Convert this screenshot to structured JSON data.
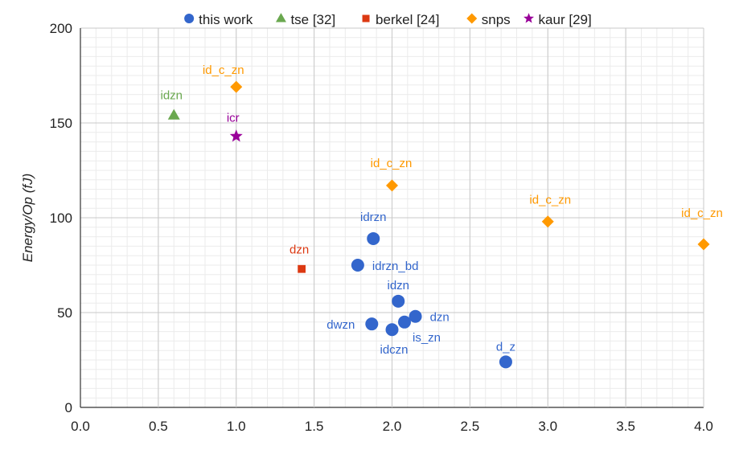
{
  "chart_data": {
    "type": "scatter",
    "title": "",
    "xlabel": "",
    "ylabel": "Energy/Op (fJ)",
    "xlim": [
      0,
      4
    ],
    "ylim": [
      0,
      200
    ],
    "xticks": [
      "0.0",
      "0.5",
      "1.0",
      "1.5",
      "2.0",
      "2.5",
      "3.0",
      "3.5",
      "4.0"
    ],
    "yticks": [
      "0",
      "50",
      "100",
      "150",
      "200"
    ],
    "grid": true,
    "legend": "top",
    "series": [
      {
        "name": "this work",
        "marker": "circle",
        "color": "#3366cc",
        "points": [
          {
            "x": 1.88,
            "y": 89,
            "label": "idrzn"
          },
          {
            "x": 1.78,
            "y": 75,
            "label": "idrzn_bd"
          },
          {
            "x": 2.04,
            "y": 56,
            "label": "idzn"
          },
          {
            "x": 2.15,
            "y": 48,
            "label": "dzn"
          },
          {
            "x": 1.87,
            "y": 44,
            "label": "dwzn"
          },
          {
            "x": 2.08,
            "y": 45,
            "label": "is_zn"
          },
          {
            "x": 2.0,
            "y": 41,
            "label": "idczn"
          },
          {
            "x": 2.73,
            "y": 24,
            "label": "d_z"
          }
        ]
      },
      {
        "name": "tse [32]",
        "marker": "triangle",
        "color": "#6aa84f",
        "points": [
          {
            "x": 0.6,
            "y": 154,
            "label": "idzn"
          }
        ]
      },
      {
        "name": "berkel [24]",
        "marker": "square",
        "color": "#dc3912",
        "points": [
          {
            "x": 1.42,
            "y": 73,
            "label": "dzn"
          }
        ]
      },
      {
        "name": "snps",
        "marker": "diamond",
        "color": "#ff9900",
        "points": [
          {
            "x": 1.0,
            "y": 169,
            "label": "id_c_zn"
          },
          {
            "x": 2.0,
            "y": 117,
            "label": "id_c_zn"
          },
          {
            "x": 3.0,
            "y": 98,
            "label": "id_c_zn"
          },
          {
            "x": 4.0,
            "y": 86,
            "label": "id_c_zn"
          }
        ]
      },
      {
        "name": "kaur [29]",
        "marker": "star",
        "color": "#990099",
        "points": [
          {
            "x": 1.0,
            "y": 143,
            "label": "icr"
          }
        ]
      }
    ]
  }
}
